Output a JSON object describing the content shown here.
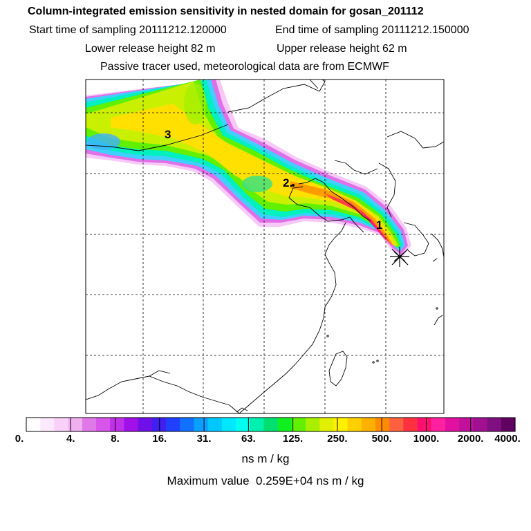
{
  "header": {
    "title": "Column-integrated emission sensitivity in nested domain for gosan_201112",
    "start_time": "Start time of sampling 20111212.120000",
    "end_time": "End time of sampling 20111212.150000",
    "lower_release": "Lower release height   82 m",
    "upper_release": "Upper release height   62 m",
    "tracer_note": "Passive tracer used, meteorological data are from ECMWF"
  },
  "map": {
    "labels": [
      {
        "text": "3",
        "id": "day-3"
      },
      {
        "text": "2.",
        "id": "day-2"
      },
      {
        "text": "1",
        "id": "day-1"
      }
    ],
    "release_marker": "release-point-star"
  },
  "colorbar": {
    "colors": [
      "#ffffff",
      "#fde9fd",
      "#f8d0f8",
      "#f0b0f0",
      "#e079e8",
      "#d755e8",
      "#c030e8",
      "#a010e8",
      "#7010e8",
      "#4020f0",
      "#2040ff",
      "#1070ff",
      "#0aa0ff",
      "#00c8ff",
      "#00e8ff",
      "#00ffee",
      "#00f0b0",
      "#00e070",
      "#10f020",
      "#60f000",
      "#a8f000",
      "#e0f000",
      "#fff000",
      "#ffd000",
      "#ffb000",
      "#ff8c00",
      "#ff6040",
      "#ff3040",
      "#ff1070",
      "#ff20a0",
      "#e010a0",
      "#c0109c",
      "#a01090",
      "#801080",
      "#600060"
    ],
    "tick_labels": [
      "0.",
      "4.",
      "8.",
      "16.",
      "31.",
      "63.",
      "125.",
      "250.",
      "500.",
      "1000.",
      "2000.",
      "4000."
    ],
    "units": "ns m / kg",
    "max_value": "Maximum value  0.259E+04 ns m / kg"
  }
}
